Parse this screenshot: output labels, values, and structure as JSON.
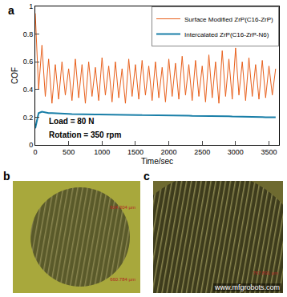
{
  "chart_data": {
    "type": "line",
    "panel_label": "a",
    "x_label": "Time/sec",
    "y_label": "COF",
    "x": [
      0,
      50,
      100,
      150,
      200,
      250,
      300,
      350,
      400,
      450,
      500,
      550,
      600,
      650,
      700,
      750,
      800,
      850,
      900,
      950,
      1000,
      1050,
      1100,
      1150,
      1200,
      1250,
      1300,
      1350,
      1400,
      1450,
      1500,
      1550,
      1600,
      1650,
      1700,
      1750,
      1800,
      1850,
      1900,
      1950,
      2000,
      2050,
      2100,
      2150,
      2200,
      2250,
      2300,
      2350,
      2400,
      2450,
      2500,
      2550,
      2600,
      2650,
      2700,
      2750,
      2800,
      2850,
      2900,
      2950,
      3000,
      3050,
      3100,
      3150,
      3200,
      3250,
      3300,
      3350,
      3400,
      3450,
      3500,
      3550,
      3600
    ],
    "series": [
      {
        "name": "Surface Modified ZrP(C16-ZrP)",
        "color": "#e8601c",
        "values": [
          0.95,
          0.4,
          0.72,
          0.35,
          0.62,
          0.3,
          0.58,
          0.33,
          0.6,
          0.36,
          0.55,
          0.32,
          0.62,
          0.34,
          0.58,
          0.3,
          0.6,
          0.35,
          0.56,
          0.32,
          0.63,
          0.36,
          0.57,
          0.31,
          0.6,
          0.34,
          0.55,
          0.3,
          0.62,
          0.35,
          0.58,
          0.33,
          0.61,
          0.36,
          0.57,
          0.32,
          0.6,
          0.34,
          0.56,
          0.31,
          0.62,
          0.35,
          0.59,
          0.33,
          0.64,
          0.36,
          0.58,
          0.32,
          0.61,
          0.35,
          0.57,
          0.31,
          0.65,
          0.34,
          0.6,
          0.3,
          0.68,
          0.35,
          0.62,
          0.33,
          0.7,
          0.36,
          0.6,
          0.32,
          0.63,
          0.35,
          0.58,
          0.33,
          0.61,
          0.34,
          0.57,
          0.36,
          0.55
        ]
      },
      {
        "name": "Intercalated ZrP(C16-ZrP-N6)",
        "color": "#1a7fa8",
        "values": [
          0.12,
          0.23,
          0.24,
          0.235,
          0.23,
          0.23,
          0.228,
          0.226,
          0.225,
          0.225,
          0.224,
          0.223,
          0.222,
          0.222,
          0.221,
          0.221,
          0.22,
          0.22,
          0.22,
          0.22,
          0.22,
          0.219,
          0.219,
          0.218,
          0.218,
          0.218,
          0.217,
          0.217,
          0.217,
          0.216,
          0.216,
          0.216,
          0.215,
          0.215,
          0.215,
          0.214,
          0.214,
          0.214,
          0.213,
          0.213,
          0.213,
          0.212,
          0.212,
          0.212,
          0.211,
          0.211,
          0.211,
          0.21,
          0.21,
          0.21,
          0.21,
          0.209,
          0.209,
          0.208,
          0.208,
          0.207,
          0.207,
          0.206,
          0.206,
          0.205,
          0.205,
          0.204,
          0.204,
          0.203,
          0.203,
          0.202,
          0.202,
          0.201,
          0.201,
          0.2,
          0.2,
          0.2,
          0.2
        ]
      }
    ],
    "xlim": [
      0,
      3650
    ],
    "xticks": [
      0,
      500,
      1000,
      1500,
      2000,
      2500,
      3000,
      3500
    ],
    "ylim": [
      0,
      1
    ],
    "yticks": [
      0,
      0.2,
      0.4,
      0.6,
      0.8,
      1
    ],
    "grid": false,
    "legend": "top-right",
    "annotations": [
      "Load = 80 N",
      "Rotation = 350 rpm"
    ]
  },
  "images": [
    {
      "label": "b",
      "scale_texts": [
        "604.304 µm",
        "660.784 µm"
      ]
    },
    {
      "label": "c",
      "scale_texts": [
        "767.891 µm"
      ]
    }
  ],
  "watermark": "www.mfgrobots.com"
}
